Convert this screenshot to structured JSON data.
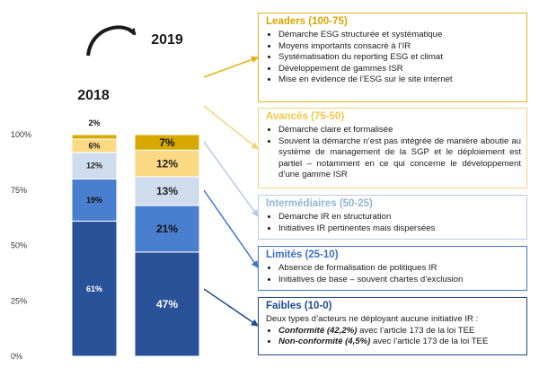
{
  "chart_data": {
    "type": "bar",
    "stacked": true,
    "categories": [
      "2018",
      "2019"
    ],
    "ylim": [
      0,
      100
    ],
    "yticks": [
      "0%",
      "25%",
      "50%",
      "75%",
      "100%"
    ],
    "series": [
      {
        "name": "Faibles",
        "color": "#2a5298",
        "label_color": "#ffffff",
        "values": [
          61,
          47
        ],
        "labels": [
          "61%",
          "47%"
        ]
      },
      {
        "name": "Limités",
        "color": "#4a7fcf",
        "label_color": "#111111",
        "values": [
          19,
          21
        ],
        "labels": [
          "19%",
          "21%"
        ]
      },
      {
        "name": "Intermédiaires",
        "color": "#cfdced",
        "label_color": "#222222",
        "values": [
          12,
          13
        ],
        "labels": [
          "12%",
          "13%"
        ]
      },
      {
        "name": "Avancés",
        "color": "#fbd982",
        "label_color": "#222222",
        "values": [
          6,
          12
        ],
        "labels": [
          "6%",
          "12%"
        ]
      },
      {
        "name": "Leaders",
        "color": "#d7a900",
        "label_color": "#111111",
        "values": [
          2,
          7
        ],
        "labels": [
          "2%",
          "7%"
        ]
      }
    ]
  },
  "boxes": {
    "leaders": {
      "title": "Leaders (100-75)",
      "items": [
        "Démarche ESG structurée et systématique",
        "Moyens importants consacré à l’IR",
        "Systématisation du reporting ESG et climat",
        "Développement de gammes ISR",
        "Mise en évidence de l’ESG sur le site internet"
      ]
    },
    "avances": {
      "title": "Avancés (75-50)",
      "items": [
        "Démarche claire et formalisée",
        "Souvent la démarche n’est pas intégrée de manière aboutie au système de management de la SGP et le déploiement est partiel – notamment en ce qui concerne le développement d’une gamme ISR"
      ]
    },
    "intermediaires": {
      "title": "Intermédiaires (50-25)",
      "items": [
        "Démarche IR en structuration",
        "Initiatives IR pertinentes mais dispersées"
      ]
    },
    "limites": {
      "title": "Limités (25-10)",
      "items": [
        "Absence de formalisation de politiques IR",
        "Initiatives de base – souvent chartes d’exclusion"
      ]
    },
    "faibles": {
      "title": "Faibles (10-0)",
      "intro": "Deux types d’acteurs ne déployant aucune initiative IR :",
      "items": [
        {
          "bold": "Conformité (42,2%)",
          "rest": " avec l’article 173 de la loi TEE"
        },
        {
          "bold": "Non-conformité (4,5%)",
          "rest": " avec l’article 173 de la loi TEE"
        }
      ]
    }
  }
}
